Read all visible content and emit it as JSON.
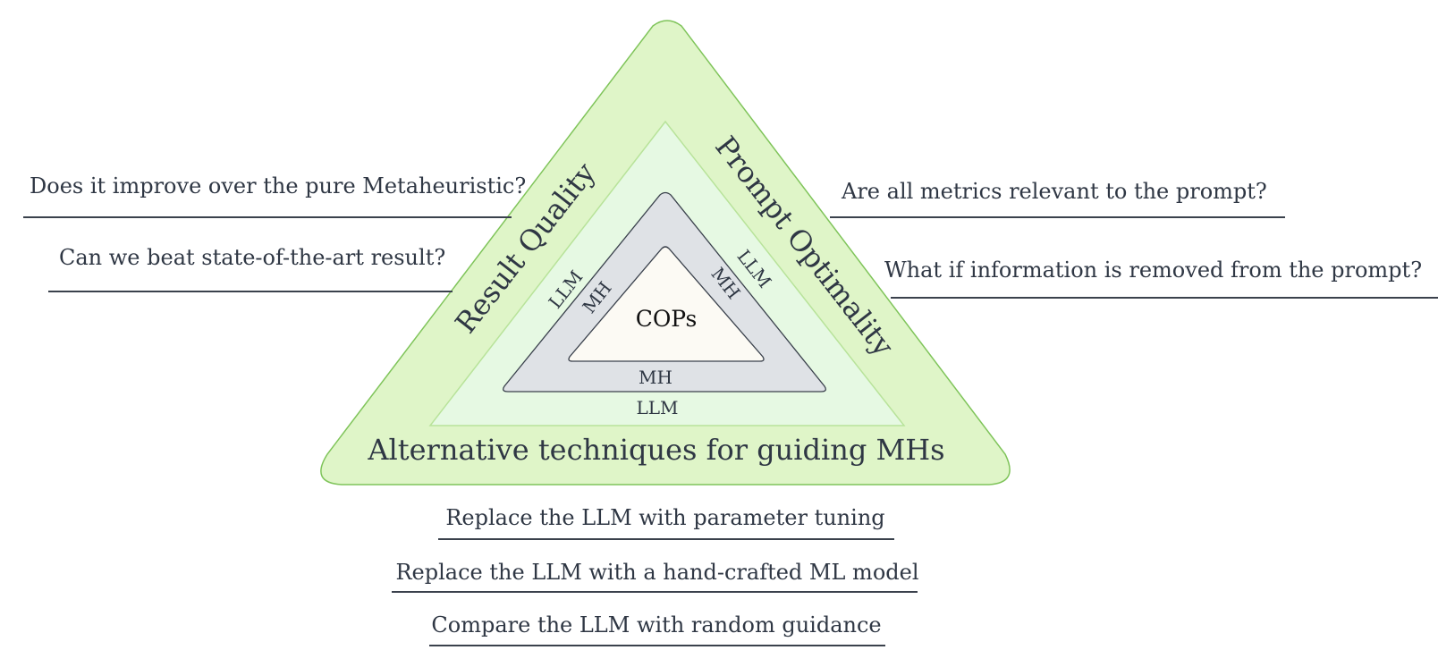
{
  "center": {
    "label": "COPs"
  },
  "inner_ring": {
    "left": "MH",
    "right": "MH",
    "bottom": "MH"
  },
  "middle_ring": {
    "left": "LLM",
    "right": "LLM",
    "bottom": "LLM"
  },
  "outer_sides": {
    "left": "Result Quality",
    "right": "Prompt Optimality",
    "bottom": "Alternative techniques for guiding MHs"
  },
  "questions": {
    "left": [
      "Does it improve over the pure Metaheuristic?",
      "Can we beat state-of-the-art result?"
    ],
    "right": [
      "Are all metrics relevant to the prompt?",
      "What if information is removed from the prompt?"
    ],
    "bottom": [
      "Replace the LLM with parameter tuning",
      "Replace the LLM with a hand-crafted ML model",
      "Compare the LLM with random guidance"
    ]
  },
  "colors": {
    "outer_fill": "#dff5c8",
    "outer_stroke": "#7fc45a",
    "second_fill": "#e6f9e3",
    "second_stroke": "#b8e39a",
    "gray_fill": "#dfe2e6",
    "gray_stroke": "#3a414c",
    "center_fill": "#fcfaf4",
    "text": "#2f3744"
  }
}
